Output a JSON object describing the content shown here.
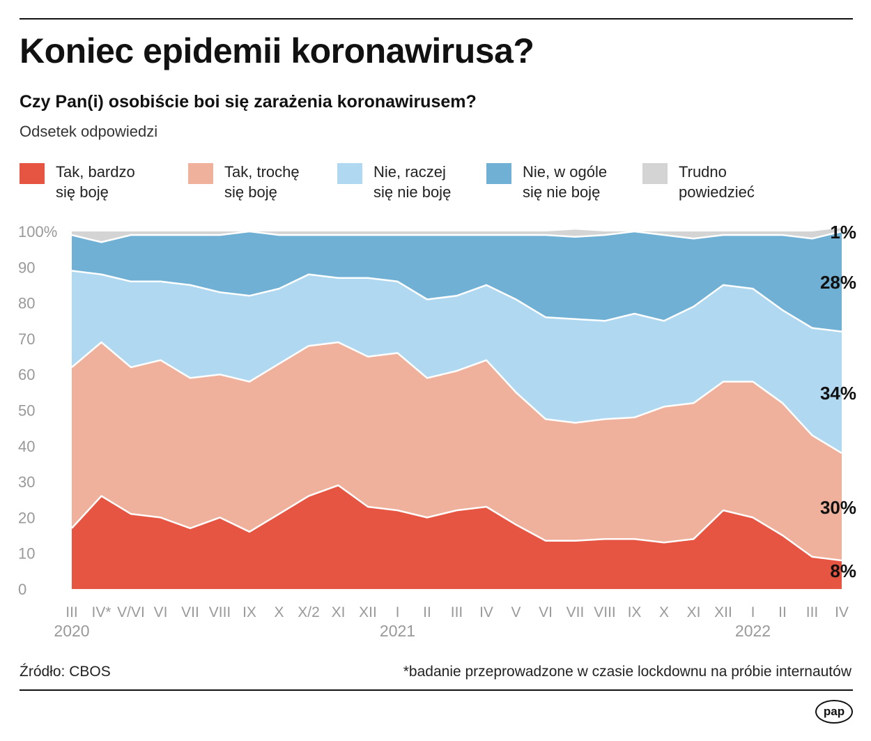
{
  "header": {
    "title": "Koniec epidemii koronawirusa?",
    "subtitle": "Czy Pan(i) osobiście boi się zarażenia koronawirusem?",
    "unit_label": "Odsetek odpowiedzi"
  },
  "legend": [
    {
      "line1": "Tak, bardzo",
      "line2": "się boję",
      "color": "#e55541"
    },
    {
      "line1": "Tak, trochę",
      "line2": "się boję",
      "color": "#efb19c"
    },
    {
      "line1": "Nie, raczej",
      "line2": "się nie boję",
      "color": "#b0d8f0"
    },
    {
      "line1": "Nie, w ogóle",
      "line2": "się nie boję",
      "color": "#6fb0d4"
    },
    {
      "line1": "Trudno",
      "line2": "powiedzieć",
      "color": "#d4d4d4"
    }
  ],
  "chart_data": {
    "type": "area",
    "stacked": true,
    "title": "Czy Pan(i) osobiście boi się zarażenia koronawirusem?",
    "ylabel": "Odsetek odpowiedzi",
    "ylim": [
      0,
      100
    ],
    "yticks": [
      "100%",
      "90",
      "80",
      "70",
      "60",
      "50",
      "40",
      "30",
      "20",
      "10",
      "0"
    ],
    "categories": [
      "III",
      "IV*",
      "V/VI",
      "VI",
      "VII",
      "VIII",
      "IX",
      "X",
      "X/2",
      "XI",
      "XII",
      "I",
      "II",
      "III",
      "IV",
      "V",
      "VI",
      "VII",
      "VIII",
      "IX",
      "X",
      "XI",
      "XII",
      "I",
      "II",
      "III",
      "IV"
    ],
    "x_tick_labels": [
      "III",
      "IV*",
      "V/VI",
      "VI",
      "VII",
      "VIII",
      "IX",
      "X",
      "X/2",
      "XI",
      "XII",
      "I",
      "II",
      "III",
      "IV",
      "V",
      "VI",
      "VII",
      "VIII",
      "IX",
      "X",
      "XI",
      "XII",
      "I",
      "II",
      "III",
      "IV"
    ],
    "year_labels": [
      {
        "text": "2020",
        "index": 0
      },
      {
        "text": "2021",
        "index": 11
      },
      {
        "text": "2022",
        "index": 23
      }
    ],
    "series": [
      {
        "name": "Tak, bardzo się boję",
        "color": "#e55541",
        "values": [
          17,
          26,
          21,
          20,
          17,
          20,
          16,
          21,
          26,
          29,
          23,
          22,
          20,
          22,
          23,
          18,
          13.5,
          13.5,
          14,
          14,
          13,
          14,
          22,
          20,
          15,
          9,
          8
        ]
      },
      {
        "name": "Tak, trochę się boję",
        "color": "#efb19c",
        "values": [
          45,
          43,
          41,
          44,
          42,
          40,
          42,
          42,
          42,
          40,
          42,
          44,
          39,
          39,
          41,
          37,
          34,
          33,
          33.5,
          34,
          38,
          38,
          36,
          38,
          37,
          34,
          30
        ]
      },
      {
        "name": "Nie, raczej się nie boję",
        "color": "#b0d8f0",
        "values": [
          27,
          19,
          24,
          22,
          26,
          23,
          24,
          21,
          20,
          18,
          22,
          20,
          22,
          21,
          21,
          26,
          28.5,
          29,
          27.5,
          29,
          24,
          27,
          27,
          26,
          26,
          30,
          34
        ]
      },
      {
        "name": "Nie, w ogóle się nie boję",
        "color": "#6fb0d4",
        "values": [
          10,
          9,
          13,
          13,
          14,
          16,
          18,
          15,
          11,
          12,
          12,
          13,
          18,
          17,
          14,
          18,
          23,
          23,
          24,
          23,
          24,
          19,
          14,
          15,
          21,
          25,
          28
        ]
      },
      {
        "name": "Trudno powiedzieć",
        "color": "#d4d4d4",
        "values": [
          1,
          3,
          1,
          1,
          1,
          1,
          0,
          1,
          1,
          1,
          1,
          1,
          1,
          1,
          1,
          1,
          1,
          2,
          1,
          0,
          1,
          2,
          1,
          1,
          1,
          2,
          1
        ]
      }
    ],
    "end_labels": [
      "8%",
      "30%",
      "34%",
      "28%",
      "1%"
    ]
  },
  "footer": {
    "source": "Źródło: CBOS",
    "note": "*badanie przeprowadzone w czasie lockdownu na próbie internautów",
    "logo": "pap"
  }
}
